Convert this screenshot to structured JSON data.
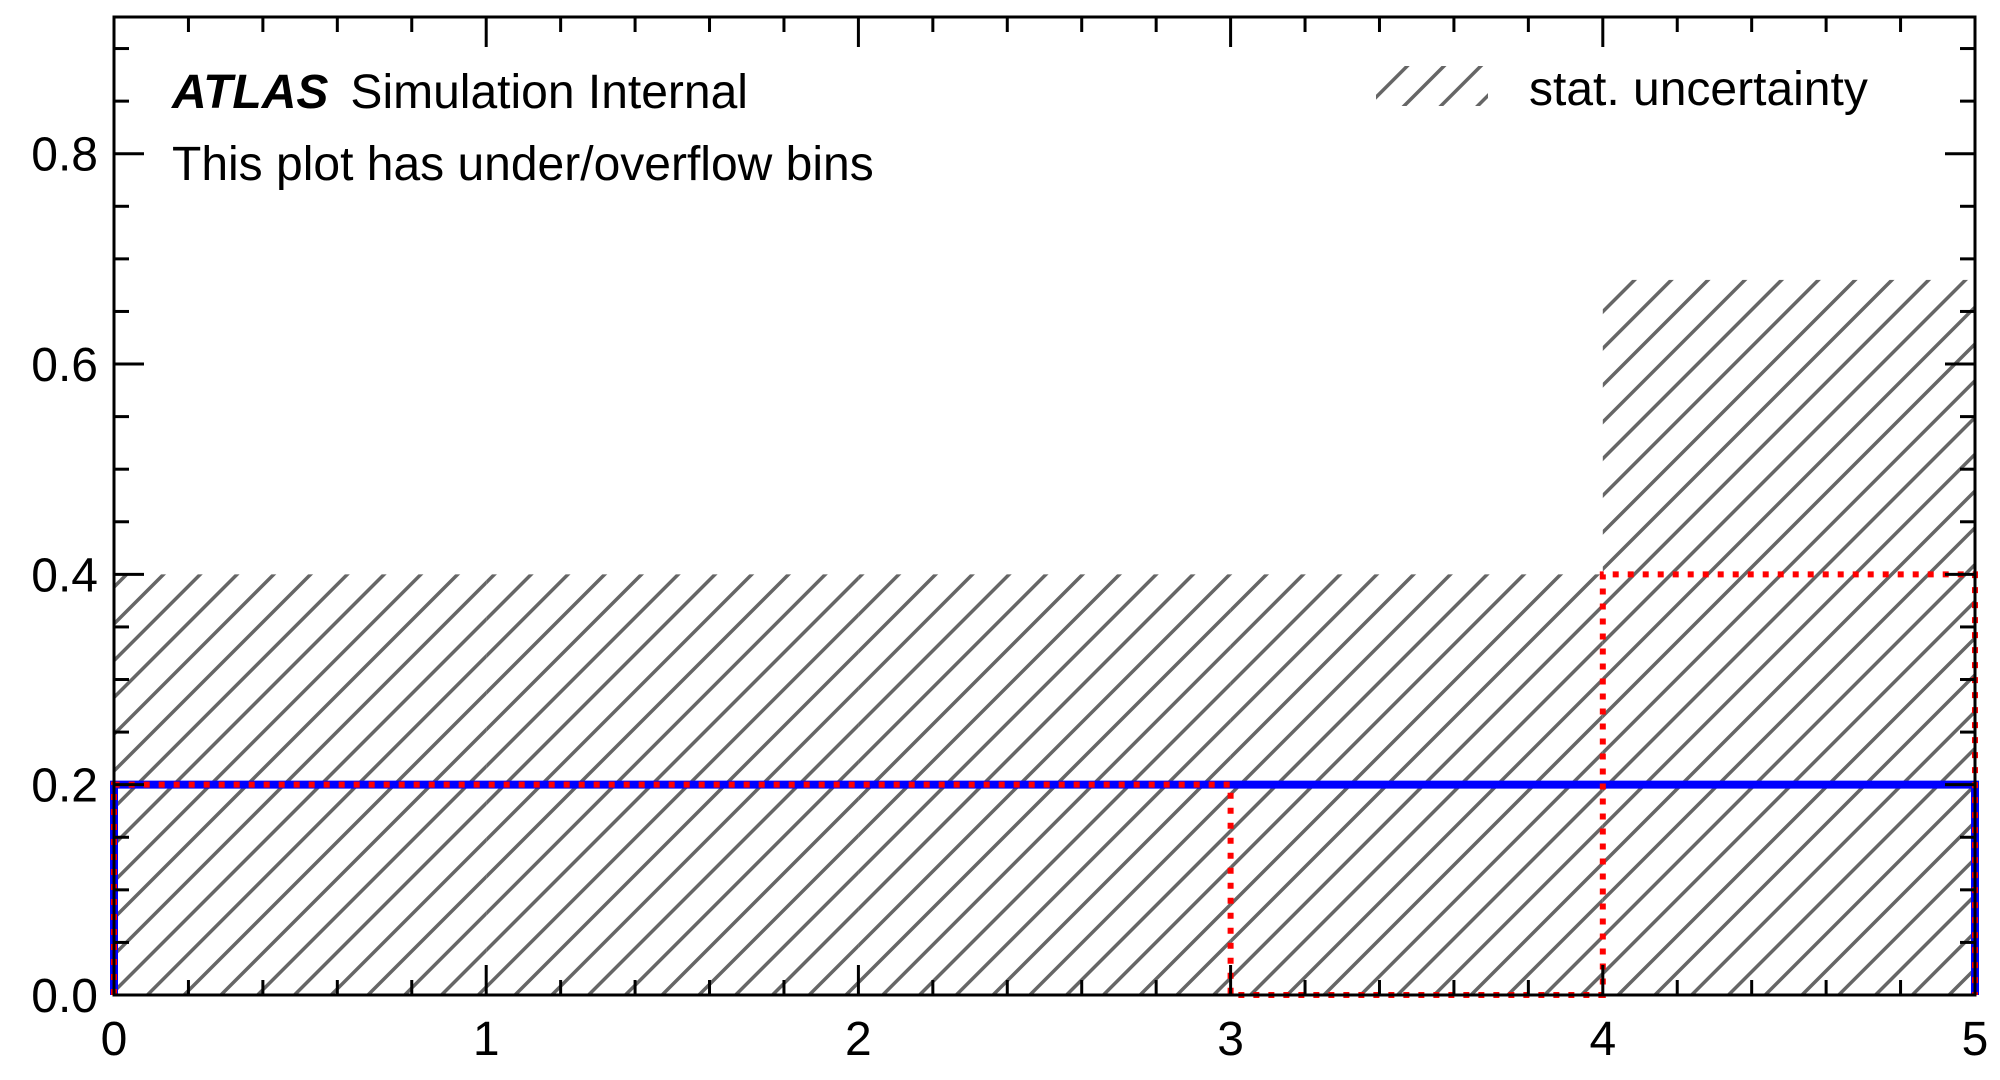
{
  "chart_data": {
    "type": "step",
    "atlas_label": "ATLAS",
    "atlas_sublabel": "Simulation Internal",
    "annotation": "This plot has under/overflow bins",
    "legend": [
      {
        "label": "stat. uncertainty",
        "style": "hatched",
        "color": "#666666"
      }
    ],
    "legend_placement": "top-right",
    "bin_edges": [
      0,
      1,
      2,
      3,
      4,
      5
    ],
    "series": [
      {
        "color": "#0000ff",
        "linestyle": "solid",
        "values": [
          0.2,
          0.2,
          0.2,
          0.2,
          0.2
        ]
      },
      {
        "color": "#ff0000",
        "linestyle": "dotted",
        "values": [
          0.2,
          0.2,
          0.2,
          0.0,
          0.4
        ]
      }
    ],
    "uncertainty_band": {
      "low": [
        0.0,
        0.0,
        0.0,
        0.0,
        0.0
      ],
      "high": [
        0.4,
        0.4,
        0.4,
        0.4,
        0.68
      ]
    },
    "xlim": [
      0,
      5
    ],
    "ylim": [
      0,
      0.93
    ],
    "xticks": [
      0,
      1,
      2,
      3,
      4,
      5
    ],
    "xtick_labels": [
      "0",
      "1",
      "2",
      "3",
      "4",
      "5"
    ],
    "yticks": [
      0.0,
      0.2,
      0.4,
      0.6,
      0.8
    ],
    "ytick_labels": [
      "0.0",
      "0.2",
      "0.4",
      "0.6",
      "0.8"
    ],
    "xlabel": "",
    "ylabel": "",
    "grid": false
  }
}
